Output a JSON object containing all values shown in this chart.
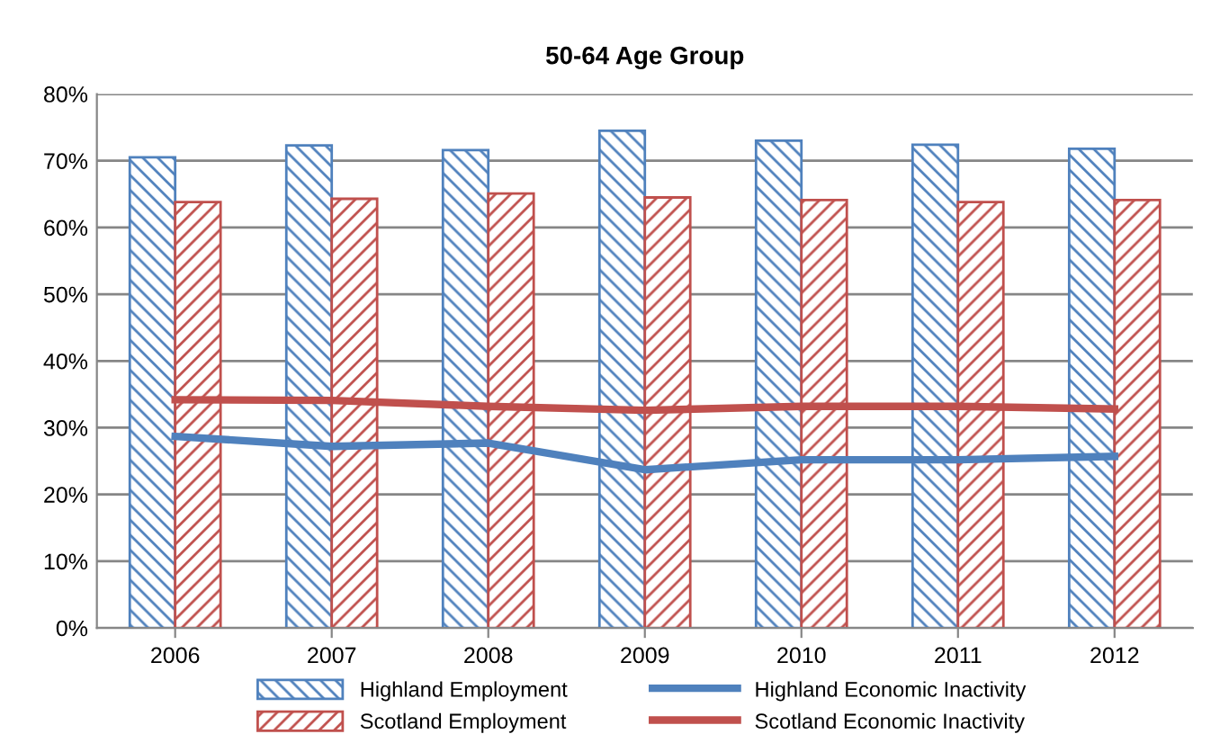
{
  "chart_data": {
    "type": "bar",
    "title": "50-64 Age Group",
    "categories": [
      "2006",
      "2007",
      "2008",
      "2009",
      "2010",
      "2011",
      "2012"
    ],
    "series": [
      {
        "name": "Highland Employment",
        "color": "#4f81bd",
        "values": [
          70.5,
          72.3,
          71.6,
          74.5,
          73.0,
          72.4,
          71.8
        ]
      },
      {
        "name": "Scotland Employment",
        "color": "#c0504d",
        "values": [
          63.8,
          64.3,
          65.1,
          64.5,
          64.1,
          63.8,
          64.1
        ]
      },
      {
        "name": "Highland Economic Inactivity",
        "type": "line",
        "color": "#4f81bd",
        "values": [
          28.7,
          27.2,
          27.7,
          23.7,
          25.2,
          25.2,
          25.7
        ]
      },
      {
        "name": "Scotland Economic Inactivity",
        "type": "line",
        "color": "#c0504d",
        "values": [
          34.2,
          34.1,
          33.2,
          32.6,
          33.2,
          33.2,
          32.8
        ]
      }
    ],
    "ylim": [
      0,
      80
    ],
    "yticks": [
      {
        "value": 0,
        "label": "0%"
      },
      {
        "value": 10,
        "label": "10%"
      },
      {
        "value": 20,
        "label": "20%"
      },
      {
        "value": 30,
        "label": "30%"
      },
      {
        "value": 40,
        "label": "40%"
      },
      {
        "value": 50,
        "label": "50%"
      },
      {
        "value": 60,
        "label": "60%"
      },
      {
        "value": 70,
        "label": "70%"
      },
      {
        "value": 80,
        "label": "80%"
      }
    ],
    "grid": "y",
    "legend": "bottom",
    "marker": "none",
    "line_style": "solid"
  }
}
